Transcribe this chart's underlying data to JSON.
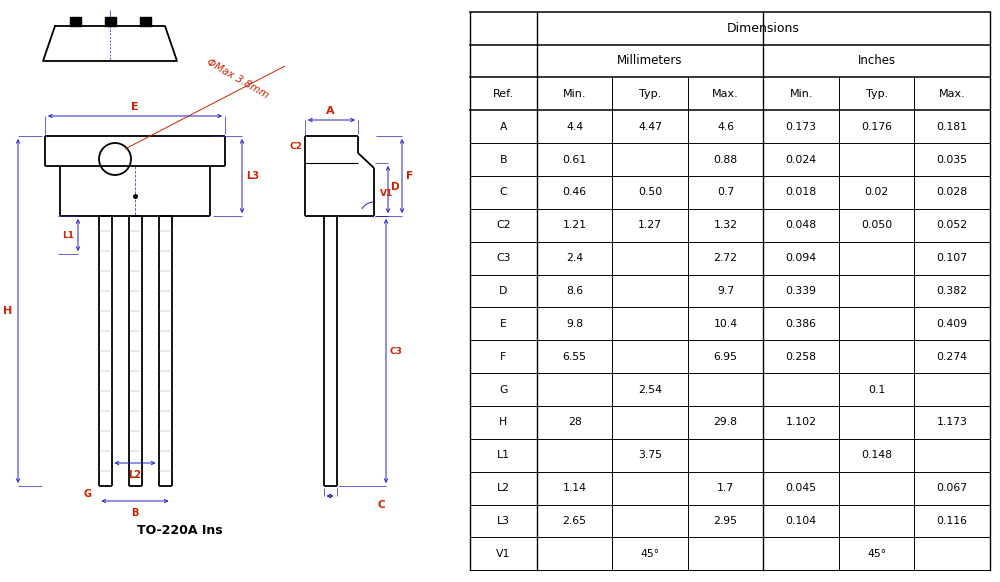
{
  "title": "TO-220A Ins",
  "table_rows": [
    [
      "A",
      "4.4",
      "4.47",
      "4.6",
      "0.173",
      "0.176",
      "0.181"
    ],
    [
      "B",
      "0.61",
      "",
      "0.88",
      "0.024",
      "",
      "0.035"
    ],
    [
      "C",
      "0.46",
      "0.50",
      "0.7",
      "0.018",
      "0.02",
      "0.028"
    ],
    [
      "C2",
      "1.21",
      "1.27",
      "1.32",
      "0.048",
      "0.050",
      "0.052"
    ],
    [
      "C3",
      "2.4",
      "",
      "2.72",
      "0.094",
      "",
      "0.107"
    ],
    [
      "D",
      "8.6",
      "",
      "9.7",
      "0.339",
      "",
      "0.382"
    ],
    [
      "E",
      "9.8",
      "",
      "10.4",
      "0.386",
      "",
      "0.409"
    ],
    [
      "F",
      "6.55",
      "",
      "6.95",
      "0.258",
      "",
      "0.274"
    ],
    [
      "G",
      "",
      "2.54",
      "",
      "",
      "0.1",
      ""
    ],
    [
      "H",
      "28",
      "",
      "29.8",
      "1.102",
      "",
      "1.173"
    ],
    [
      "L1",
      "",
      "3.75",
      "",
      "",
      "0.148",
      ""
    ],
    [
      "L2",
      "1.14",
      "",
      "1.7",
      "0.045",
      "",
      "0.067"
    ],
    [
      "L3",
      "2.65",
      "",
      "2.95",
      "0.104",
      "",
      "0.116"
    ],
    [
      "V1",
      "",
      "45°",
      "",
      "",
      "45°",
      ""
    ]
  ],
  "bg_color": "#ffffff",
  "blue_color": "#2222bb",
  "red_color": "#cc2200",
  "gray_color": "#999999",
  "dim_header": "Dimensions",
  "mm_header": "Millimeters",
  "in_header": "Inches",
  "col_headers": [
    "Ref.",
    "Min.",
    "Typ.",
    "Max.",
    "Min.",
    "Typ.",
    "Max."
  ]
}
